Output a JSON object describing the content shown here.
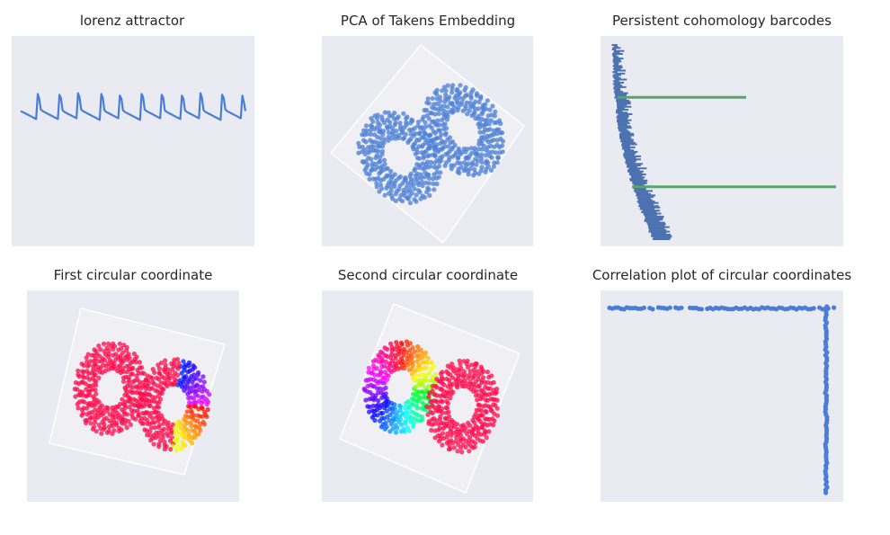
{
  "colors": {
    "panel_bg": "#eaeaf2",
    "series_blue": "#4a7ed6",
    "barcode_blue": "#4c72b0",
    "barcode_green": "#55a868",
    "hue_dominant": "#ff0a4b"
  },
  "chart_data": [
    {
      "id": "lorenz",
      "type": "line",
      "title": "lorenz attractor",
      "grid": false,
      "series": [
        {
          "values": [
            0.48,
            0.46,
            0.44,
            0.42,
            0.4,
            0.38,
            0.36,
            0.34,
            0.32,
            0.3,
            0.28,
            0.9,
            0.78,
            0.52,
            0.48,
            0.46,
            0.44,
            0.42,
            0.4,
            0.38,
            0.36,
            0.34,
            0.32,
            0.3,
            0.28,
            0.88,
            0.8,
            0.5,
            0.46,
            0.44,
            0.42,
            0.4,
            0.38,
            0.36,
            0.34,
            0.32,
            0.3,
            0.92,
            0.82,
            0.52,
            0.48,
            0.46,
            0.44,
            0.42,
            0.4,
            0.38,
            0.36,
            0.34,
            0.32,
            0.3,
            0.28,
            0.26,
            0.9,
            0.8,
            0.5,
            0.46,
            0.44,
            0.42,
            0.4,
            0.38,
            0.36,
            0.34,
            0.32,
            0.3,
            0.86,
            0.78,
            0.5,
            0.46,
            0.44,
            0.42,
            0.4,
            0.38,
            0.36,
            0.34,
            0.32,
            0.3,
            0.28,
            0.26,
            0.9,
            0.82,
            0.52,
            0.48,
            0.46,
            0.44,
            0.42,
            0.4,
            0.38,
            0.36,
            0.34,
            0.32,
            0.3,
            0.88,
            0.8,
            0.5,
            0.46,
            0.44,
            0.42,
            0.4,
            0.38,
            0.36,
            0.34,
            0.32,
            0.3,
            0.28,
            0.86,
            0.78,
            0.5,
            0.46,
            0.44,
            0.42,
            0.4,
            0.38,
            0.36,
            0.34,
            0.32,
            0.3,
            0.92,
            0.8,
            0.5,
            0.46,
            0.44,
            0.42,
            0.4,
            0.38,
            0.36,
            0.34,
            0.32,
            0.3,
            0.28,
            0.26,
            0.88,
            0.8,
            0.52,
            0.48,
            0.46,
            0.44,
            0.42,
            0.4,
            0.38,
            0.36,
            0.34,
            0.32,
            0.3,
            0.86,
            0.7,
            0.48
          ]
        }
      ]
    },
    {
      "id": "pca",
      "type": "scatter",
      "title": "PCA of Takens Embedding",
      "grid": false
    },
    {
      "id": "barcodes",
      "type": "bar",
      "title": "Persistent cohomology barcodes",
      "grid": false,
      "long_bars": [
        {
          "birth": 0.07,
          "death": 0.6,
          "rank": 0.27
        },
        {
          "birth": 0.13,
          "death": 0.97,
          "rank": 0.73
        }
      ]
    },
    {
      "id": "circ1",
      "type": "scatter",
      "title": "First circular coordinate",
      "grid": false
    },
    {
      "id": "circ2",
      "type": "scatter",
      "title": "Second circular coordinate",
      "grid": false
    },
    {
      "id": "corr",
      "type": "scatter",
      "title": "Correlation plot of circular coordinates",
      "grid": false
    }
  ]
}
